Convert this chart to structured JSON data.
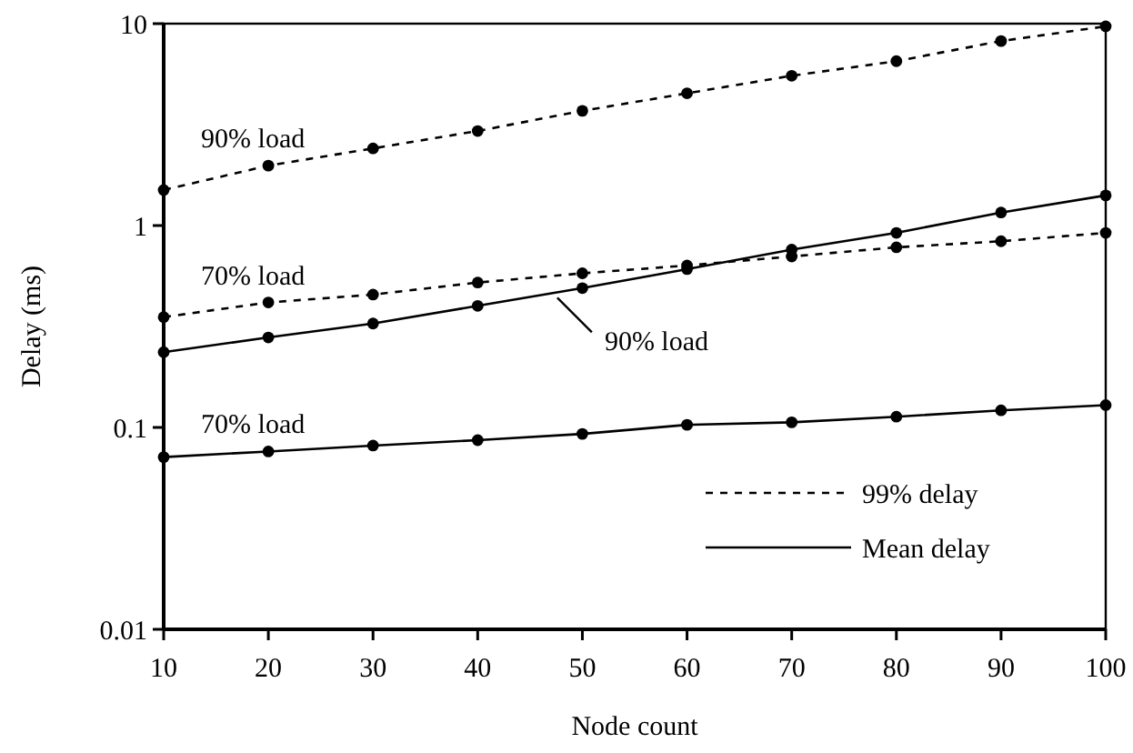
{
  "chart_data": {
    "type": "line",
    "xlabel": "Node count",
    "ylabel": "Delay (ms)",
    "x": [
      10,
      20,
      30,
      40,
      50,
      60,
      70,
      80,
      90,
      100
    ],
    "xlim": [
      10,
      100
    ],
    "xticks": [
      10,
      20,
      30,
      40,
      50,
      60,
      70,
      80,
      90,
      100
    ],
    "ylim": [
      0.01,
      10
    ],
    "yticks": [
      0.01,
      0.1,
      1,
      10
    ],
    "log": "y",
    "grid": false,
    "marker": "circle",
    "series": [
      {
        "name": "90% load",
        "color": "#000000",
        "line_style": "dashed",
        "values": [
          1.5,
          1.98,
          2.41,
          2.94,
          3.7,
          4.52,
          5.52,
          6.52,
          8.2,
          9.7
        ]
      },
      {
        "name": "70% load",
        "color": "#000000",
        "line_style": "dashed",
        "values": [
          0.352,
          0.416,
          0.455,
          0.522,
          0.58,
          0.634,
          0.703,
          0.78,
          0.836,
          0.92
        ]
      },
      {
        "name": "90% load",
        "color": "#000000",
        "line_style": "solid",
        "values": [
          0.236,
          0.279,
          0.327,
          0.4,
          0.49,
          0.608,
          0.76,
          0.92,
          1.16,
          1.41
        ]
      },
      {
        "name": "70% load",
        "color": "#000000",
        "line_style": "solid",
        "values": [
          0.0713,
          0.076,
          0.0813,
          0.0865,
          0.0929,
          0.103,
          0.106,
          0.113,
          0.1215,
          0.129
        ]
      }
    ],
    "annotations": [
      "99% delay",
      "Mean delay"
    ]
  }
}
